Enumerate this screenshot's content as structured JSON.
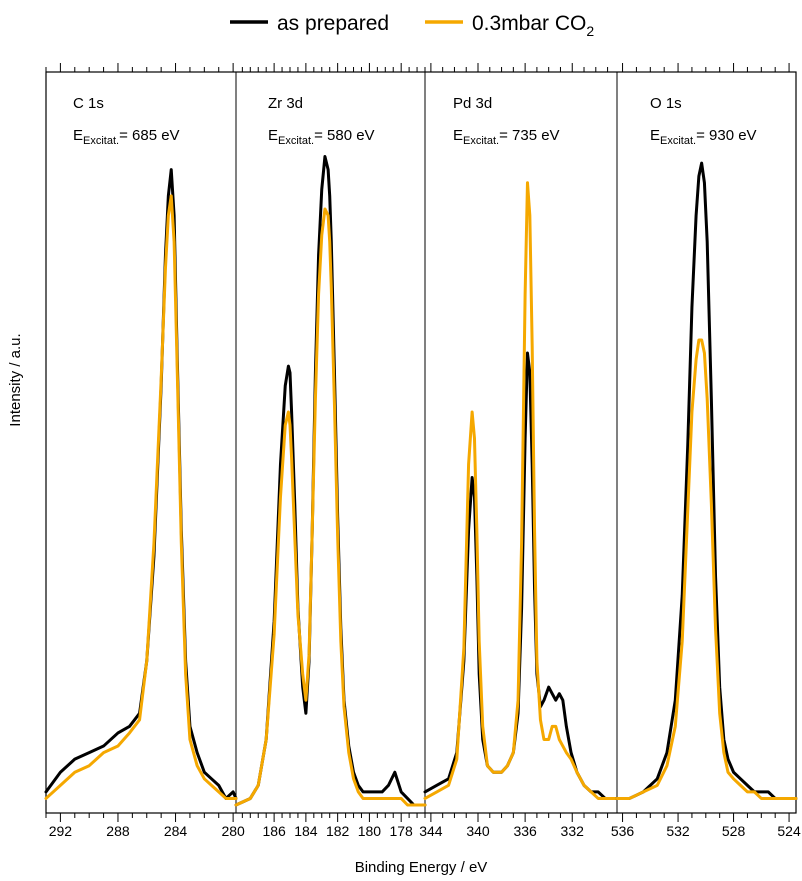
{
  "legend": {
    "position": "top-center",
    "items": [
      {
        "label": "as prepared",
        "color": "#000000"
      },
      {
        "label": "0.3mbar CO",
        "sub": "2",
        "color": "#F5A800"
      }
    ]
  },
  "chart_data": {
    "type": "line",
    "xlabel": "Binding Energy / eV",
    "ylabel": "Intensity / a.u.",
    "x_direction": "reversed",
    "grid": false,
    "series_names": [
      "as prepared",
      "0.3mbar CO2"
    ],
    "panels": [
      {
        "title": "C 1s",
        "excitation": {
          "symbol": "E",
          "sub": "Excitat.",
          "text": "= 685 eV"
        },
        "xlim": [
          293,
          279.8
        ],
        "xticks": [
          292,
          288,
          284,
          280
        ],
        "x_minor_step": 1,
        "ylim": [
          0,
          1
        ],
        "series": [
          {
            "name": "as prepared",
            "color": "#000000",
            "x": [
              293,
              292,
              291,
              290,
              289,
              288,
              287.2,
              286.5,
              286,
              285.5,
              285,
              284.7,
              284.5,
              284.3,
              284.1,
              283.9,
              283.6,
              283.3,
              283,
              282.5,
              282,
              281.5,
              281,
              280.5,
              280,
              279.8
            ],
            "y": [
              0.02,
              0.05,
              0.07,
              0.08,
              0.09,
              0.11,
              0.12,
              0.14,
              0.22,
              0.38,
              0.64,
              0.84,
              0.93,
              0.97,
              0.9,
              0.7,
              0.42,
              0.22,
              0.12,
              0.08,
              0.05,
              0.04,
              0.03,
              0.01,
              0.02,
              0.01
            ]
          },
          {
            "name": "0.3mbar CO2",
            "color": "#F5A800",
            "x": [
              293,
              292,
              291,
              290,
              289,
              288,
              287.2,
              286.5,
              286,
              285.5,
              285,
              284.7,
              284.5,
              284.3,
              284.1,
              283.9,
              283.6,
              283.3,
              283,
              282.5,
              282,
              281.5,
              281,
              280.5,
              280,
              279.8
            ],
            "y": [
              0.01,
              0.03,
              0.05,
              0.06,
              0.08,
              0.09,
              0.11,
              0.13,
              0.22,
              0.4,
              0.65,
              0.82,
              0.9,
              0.93,
              0.86,
              0.68,
              0.4,
              0.2,
              0.1,
              0.06,
              0.04,
              0.03,
              0.02,
              0.01,
              0.01,
              0.01
            ]
          }
        ]
      },
      {
        "title": "Zr 3d",
        "excitation": {
          "symbol": "E",
          "sub": "Excitat.",
          "text": "= 580 eV"
        },
        "xlim": [
          188.4,
          176.5
        ],
        "xticks": [
          186,
          184,
          182,
          180,
          178
        ],
        "x_minor_step": 0.5,
        "ylim": [
          0,
          1
        ],
        "series": [
          {
            "name": "as prepared",
            "color": "#000000",
            "x": [
              188.4,
              187.5,
              187,
              186.5,
              186,
              185.6,
              185.3,
              185.1,
              185,
              184.9,
              184.7,
              184.5,
              184.2,
              184,
              183.8,
              183.6,
              183.4,
              183.2,
              183,
              182.8,
              182.6,
              182.5,
              182.4,
              182.2,
              182,
              181.8,
              181.6,
              181.3,
              181,
              180.7,
              180.4,
              180,
              179.6,
              179.2,
              178.8,
              178.4,
              178,
              177.6,
              177.2,
              176.8,
              176.5
            ],
            "y": [
              0.0,
              0.01,
              0.03,
              0.1,
              0.28,
              0.52,
              0.64,
              0.67,
              0.66,
              0.6,
              0.46,
              0.3,
              0.18,
              0.14,
              0.22,
              0.42,
              0.66,
              0.84,
              0.94,
              0.99,
              0.97,
              0.93,
              0.86,
              0.66,
              0.44,
              0.27,
              0.16,
              0.09,
              0.05,
              0.03,
              0.02,
              0.02,
              0.02,
              0.02,
              0.03,
              0.05,
              0.02,
              0.01,
              0.0,
              0.0,
              0.0
            ]
          },
          {
            "name": "0.3mbar CO2",
            "color": "#F5A800",
            "x": [
              188.4,
              187.5,
              187,
              186.5,
              186,
              185.6,
              185.3,
              185.1,
              185,
              184.9,
              184.7,
              184.5,
              184.2,
              184,
              183.8,
              183.6,
              183.4,
              183.2,
              183,
              182.8,
              182.6,
              182.5,
              182.4,
              182.2,
              182,
              181.8,
              181.6,
              181.3,
              181,
              180.7,
              180.4,
              180,
              179.6,
              179.2,
              178.8,
              178.4,
              178,
              177.6,
              177.2,
              176.8,
              176.5
            ],
            "y": [
              0.0,
              0.01,
              0.03,
              0.1,
              0.26,
              0.47,
              0.58,
              0.6,
              0.58,
              0.53,
              0.41,
              0.29,
              0.2,
              0.16,
              0.23,
              0.42,
              0.62,
              0.78,
              0.87,
              0.91,
              0.9,
              0.86,
              0.79,
              0.61,
              0.41,
              0.25,
              0.15,
              0.08,
              0.04,
              0.02,
              0.01,
              0.01,
              0.01,
              0.01,
              0.01,
              0.01,
              0.01,
              0.0,
              0.0,
              0.0,
              0.0
            ]
          }
        ]
      },
      {
        "title": "Pd 3d",
        "excitation": {
          "symbol": "E",
          "sub": "Excitat.",
          "text": "= 735 eV"
        },
        "xlim": [
          344.5,
          328.2
        ],
        "xticks": [
          344,
          340,
          336,
          332
        ],
        "x_minor_step": 1,
        "ylim": [
          0,
          1
        ],
        "series": [
          {
            "name": "as prepared",
            "color": "#000000",
            "x": [
              344.5,
              343.5,
              342.5,
              341.8,
              341.2,
              340.8,
              340.5,
              340.3,
              340.1,
              339.9,
              339.6,
              339.2,
              338.7,
              338,
              337.5,
              337,
              336.6,
              336.3,
              336,
              335.8,
              335.6,
              335.4,
              335.2,
              335,
              334.7,
              334.4,
              334,
              333.7,
              333.4,
              333.1,
              332.8,
              332.5,
              332.1,
              331.6,
              331,
              330.4,
              329.8,
              329.2,
              328.6,
              328.2
            ],
            "y": [
              0.02,
              0.03,
              0.04,
              0.08,
              0.22,
              0.42,
              0.5,
              0.47,
              0.35,
              0.2,
              0.1,
              0.06,
              0.05,
              0.05,
              0.06,
              0.08,
              0.14,
              0.3,
              0.56,
              0.69,
              0.66,
              0.52,
              0.33,
              0.2,
              0.15,
              0.16,
              0.18,
              0.17,
              0.16,
              0.17,
              0.16,
              0.12,
              0.08,
              0.05,
              0.03,
              0.02,
              0.02,
              0.01,
              0.01,
              0.01
            ]
          },
          {
            "name": "0.3mbar CO2",
            "color": "#F5A800",
            "x": [
              344.5,
              343.5,
              342.5,
              341.8,
              341.2,
              340.8,
              340.5,
              340.3,
              340.1,
              339.9,
              339.6,
              339.2,
              338.7,
              338,
              337.5,
              337,
              336.6,
              336.3,
              336,
              335.8,
              335.6,
              335.4,
              335.2,
              335,
              334.7,
              334.4,
              334,
              333.7,
              333.4,
              333.1,
              332.8,
              332.5,
              332.1,
              331.6,
              331,
              330.4,
              329.8,
              329.2,
              328.6,
              328.2
            ],
            "y": [
              0.01,
              0.02,
              0.03,
              0.07,
              0.24,
              0.52,
              0.6,
              0.56,
              0.42,
              0.25,
              0.12,
              0.06,
              0.05,
              0.05,
              0.06,
              0.08,
              0.16,
              0.4,
              0.78,
              0.95,
              0.9,
              0.7,
              0.42,
              0.22,
              0.13,
              0.1,
              0.1,
              0.12,
              0.12,
              0.1,
              0.09,
              0.08,
              0.07,
              0.05,
              0.03,
              0.02,
              0.01,
              0.01,
              0.01,
              0.01
            ]
          }
        ]
      },
      {
        "title": "O 1s",
        "excitation": {
          "symbol": "E",
          "sub": "Excitat.",
          "text": "= 930 eV"
        },
        "xlim": [
          536.4,
          523.5
        ],
        "xticks": [
          536,
          532,
          528,
          524
        ],
        "x_minor_step": 1,
        "ylim": [
          0,
          1
        ],
        "series": [
          {
            "name": "as prepared",
            "color": "#000000",
            "x": [
              536.4,
              535.5,
              534.5,
              533.5,
              532.8,
              532.2,
              531.7,
              531.3,
              531,
              530.7,
              530.5,
              530.3,
              530.1,
              529.9,
              529.6,
              529.3,
              529,
              528.7,
              528.4,
              528,
              527.5,
              527,
              526.5,
              526,
              525.5,
              525,
              524.5,
              524,
              523.5
            ],
            "y": [
              0.01,
              0.01,
              0.02,
              0.04,
              0.08,
              0.16,
              0.32,
              0.55,
              0.76,
              0.9,
              0.96,
              0.98,
              0.95,
              0.86,
              0.62,
              0.35,
              0.18,
              0.1,
              0.07,
              0.05,
              0.04,
              0.03,
              0.02,
              0.02,
              0.02,
              0.01,
              0.01,
              0.01,
              0.01
            ]
          },
          {
            "name": "0.3mbar CO2",
            "color": "#F5A800",
            "x": [
              536.4,
              535.5,
              534.5,
              533.5,
              532.8,
              532.2,
              531.7,
              531.3,
              531,
              530.7,
              530.5,
              530.3,
              530.1,
              529.9,
              529.6,
              529.3,
              529,
              528.7,
              528.4,
              528,
              527.5,
              527,
              526.5,
              526,
              525.5,
              525,
              524.5,
              524,
              523.5
            ],
            "y": [
              0.01,
              0.01,
              0.02,
              0.03,
              0.06,
              0.12,
              0.25,
              0.45,
              0.6,
              0.68,
              0.71,
              0.71,
              0.69,
              0.62,
              0.46,
              0.27,
              0.14,
              0.08,
              0.05,
              0.04,
              0.03,
              0.02,
              0.02,
              0.01,
              0.01,
              0.01,
              0.01,
              0.01,
              0.01
            ]
          }
        ]
      }
    ]
  }
}
